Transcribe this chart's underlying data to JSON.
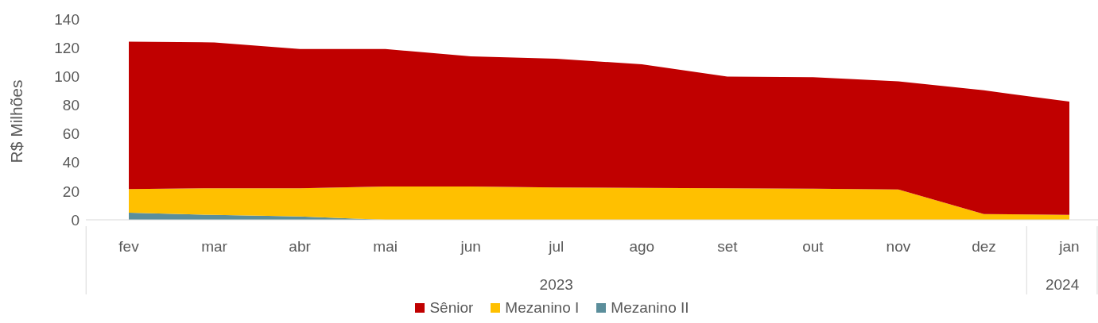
{
  "chart_data": {
    "type": "area",
    "stacked": true,
    "ylabel": "R$ Milhões",
    "categories": [
      "fev",
      "mar",
      "abr",
      "mai",
      "jun",
      "jul",
      "ago",
      "set",
      "out",
      "nov",
      "dez",
      "jan"
    ],
    "series": [
      {
        "name": "Mezanino II",
        "color": "#5b8e9b",
        "values": [
          5,
          3.4,
          2.3,
          0,
          0,
          0,
          0,
          0,
          0,
          0,
          0,
          0
        ]
      },
      {
        "name": "Mezanino I",
        "color": "#ffc000",
        "values": [
          16.5,
          18.6,
          19.7,
          23.2,
          23.2,
          22.6,
          22.3,
          22,
          21.7,
          21.2,
          4,
          3.4
        ]
      },
      {
        "name": "Sênior",
        "color": "#c00000",
        "values": [
          102.7,
          101.7,
          97.1,
          95.9,
          90.8,
          89.8,
          86.1,
          77.9,
          77.7,
          75.4,
          86.3,
          79
        ]
      }
    ],
    "ylim": [
      0,
      140
    ],
    "yticks": [
      0,
      20,
      40,
      60,
      80,
      100,
      120,
      140
    ],
    "legend": "bottom",
    "annotations": [
      "2023",
      "2024"
    ]
  }
}
